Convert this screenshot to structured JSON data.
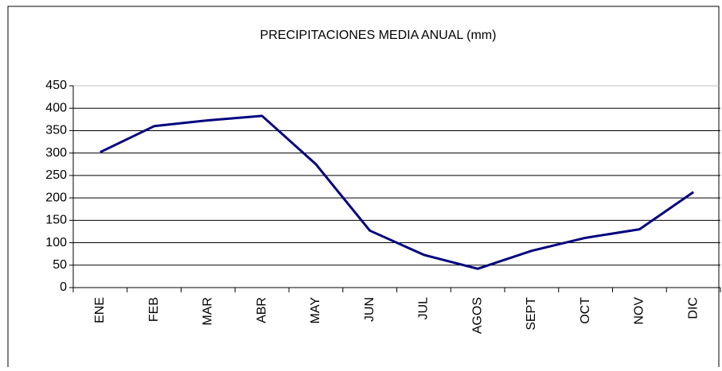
{
  "chart_data": {
    "type": "line",
    "title": "PRECIPITACIONES MEDIA ANUAL (mm)",
    "categories": [
      "ENE",
      "FEB",
      "MAR",
      "ABR",
      "MAY",
      "JUN",
      "JUL",
      "AGOS",
      "SEPT",
      "OCT",
      "NOV",
      "DIC"
    ],
    "series": [
      {
        "name": "Precipitaciones",
        "color": "#000080",
        "values": [
          302,
          360,
          373,
          383,
          275,
          127,
          73,
          42,
          82,
          111,
          130,
          213
        ]
      }
    ],
    "ylim": [
      0,
      450
    ],
    "yticks": [
      0,
      50,
      100,
      150,
      200,
      250,
      300,
      350,
      400,
      450
    ],
    "grid": true
  }
}
